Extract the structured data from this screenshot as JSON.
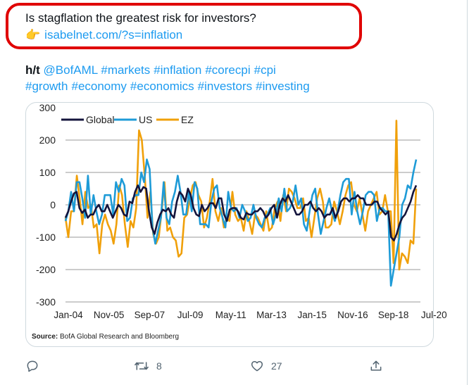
{
  "tweet": {
    "title": "Is stagflation the greatest risk for investors?",
    "link_emoji": "👉",
    "link": "isabelnet.com/?s=inflation",
    "ht_label": "h/t",
    "mention": "@BofAML",
    "hashtags_line1": [
      "#markets",
      "#inflation",
      "#corecpi",
      "#cpi"
    ],
    "hashtags_line2": [
      "#growth",
      "#economy",
      "#economics",
      "#investors",
      "#investing"
    ]
  },
  "actions": {
    "reply_count": "",
    "retweet_count": "8",
    "like_count": "27"
  },
  "chart_data": {
    "type": "line",
    "legend": [
      "Global",
      "US",
      "EZ"
    ],
    "colors": {
      "Global": "#14143c",
      "US": "#1e9bd7",
      "EZ": "#f0a00a"
    },
    "x_tick_labels": [
      "Jan-04",
      "Nov-05",
      "Sep-07",
      "Jul-09",
      "May-11",
      "Mar-13",
      "Jan-15",
      "Nov-16",
      "Sep-18",
      "Jul-20"
    ],
    "y_tick_labels": [
      "300",
      "200",
      "100",
      "0",
      "-100",
      "-200",
      "-300"
    ],
    "ylim": [
      -300,
      300
    ],
    "grid": "horizontal",
    "legend_position": "top-left",
    "source_label": "Source:",
    "source_text": "BofA Global Research and Bloomberg",
    "series": [
      {
        "name": "Global",
        "values": [
          -40,
          -20,
          10,
          35,
          40,
          -10,
          -25,
          -15,
          -40,
          -30,
          -30,
          -10,
          0,
          -20,
          -20,
          0,
          -20,
          -40,
          -20,
          0,
          -10,
          -30,
          -35,
          10,
          5,
          40,
          60,
          40,
          55,
          50,
          -20,
          -70,
          -90,
          -55,
          -30,
          -15,
          -20,
          -10,
          -30,
          -40,
          10,
          40,
          30,
          10,
          50,
          30,
          -10,
          -30,
          -35,
          0,
          -20,
          -10,
          5,
          5,
          -10,
          20,
          20,
          -30,
          -50,
          -15,
          -10,
          -10,
          -20,
          -40,
          -45,
          -25,
          -30,
          -30,
          -20,
          -20,
          -10,
          -20,
          -40,
          -30,
          -10,
          0,
          -40,
          0,
          20,
          10,
          30,
          10,
          -10,
          -30,
          -30,
          -20,
          0,
          0,
          10,
          -10,
          -20,
          -10,
          -20,
          -40,
          -30,
          -30,
          -10,
          -40,
          -20,
          10,
          20,
          20,
          10,
          20,
          20,
          30,
          20,
          20,
          0,
          0,
          0,
          10,
          10,
          -10,
          -20,
          -30,
          -20,
          -100,
          -110,
          -90,
          -60,
          -40,
          -30,
          -10,
          10,
          40,
          60
        ]
      },
      {
        "name": "US",
        "values": [
          -50,
          -20,
          40,
          -20,
          70,
          70,
          20,
          -40,
          90,
          -30,
          30,
          -20,
          -60,
          -30,
          30,
          30,
          30,
          -30,
          70,
          40,
          80,
          60,
          -50,
          -40,
          20,
          30,
          30,
          100,
          70,
          140,
          110,
          -70,
          -120,
          -80,
          -40,
          70,
          -40,
          -60,
          10,
          40,
          90,
          40,
          -30,
          -30,
          40,
          -20,
          70,
          50,
          -60,
          -60,
          -60,
          -70,
          10,
          50,
          60,
          -10,
          -40,
          -70,
          40,
          -10,
          -20,
          -10,
          -40,
          0,
          -20,
          -50,
          -40,
          0,
          -40,
          -60,
          -70,
          -40,
          -30,
          -10,
          -60,
          -30,
          20,
          -20,
          50,
          -20,
          -10,
          10,
          60,
          0,
          20,
          -60,
          -80,
          -20,
          30,
          50,
          -30,
          -90,
          -50,
          -10,
          20,
          -20,
          -50,
          -20,
          30,
          70,
          80,
          80,
          -30,
          40,
          -20,
          -60,
          -20,
          30,
          40,
          40,
          30,
          -50,
          -10,
          -10,
          -20,
          -20,
          -250,
          -200,
          -150,
          -100,
          0,
          20,
          60,
          50,
          100,
          140
        ]
      },
      {
        "name": "EZ",
        "values": [
          -40,
          -100,
          -20,
          -20,
          90,
          20,
          -60,
          40,
          -10,
          0,
          -70,
          -60,
          -150,
          -60,
          -30,
          -60,
          -80,
          -120,
          -60,
          60,
          30,
          -60,
          -130,
          -50,
          -70,
          -10,
          230,
          200,
          90,
          -40,
          40,
          -90,
          -120,
          -100,
          -20,
          70,
          -80,
          -70,
          -100,
          -110,
          -160,
          -150,
          -40,
          -30,
          20,
          60,
          70,
          30,
          10,
          -70,
          -40,
          10,
          80,
          -20,
          -50,
          -10,
          -70,
          -40,
          -50,
          40,
          -30,
          -50,
          -40,
          -80,
          -20,
          -50,
          -90,
          -30,
          -40,
          -60,
          -80,
          -20,
          -80,
          -70,
          -10,
          10,
          -50,
          30,
          -20,
          50,
          40,
          20,
          -10,
          -10,
          20,
          -50,
          -40,
          -100,
          -40,
          20,
          50,
          10,
          -70,
          -70,
          -60,
          10,
          -20,
          -60,
          -20,
          30,
          60,
          70,
          0,
          -20,
          20,
          -30,
          -80,
          -20,
          0,
          20,
          40,
          -30,
          -20,
          30,
          -20,
          -20,
          -180,
          260,
          -200,
          -150,
          -160,
          -180,
          -110,
          -120,
          50
        ]
      }
    ]
  }
}
